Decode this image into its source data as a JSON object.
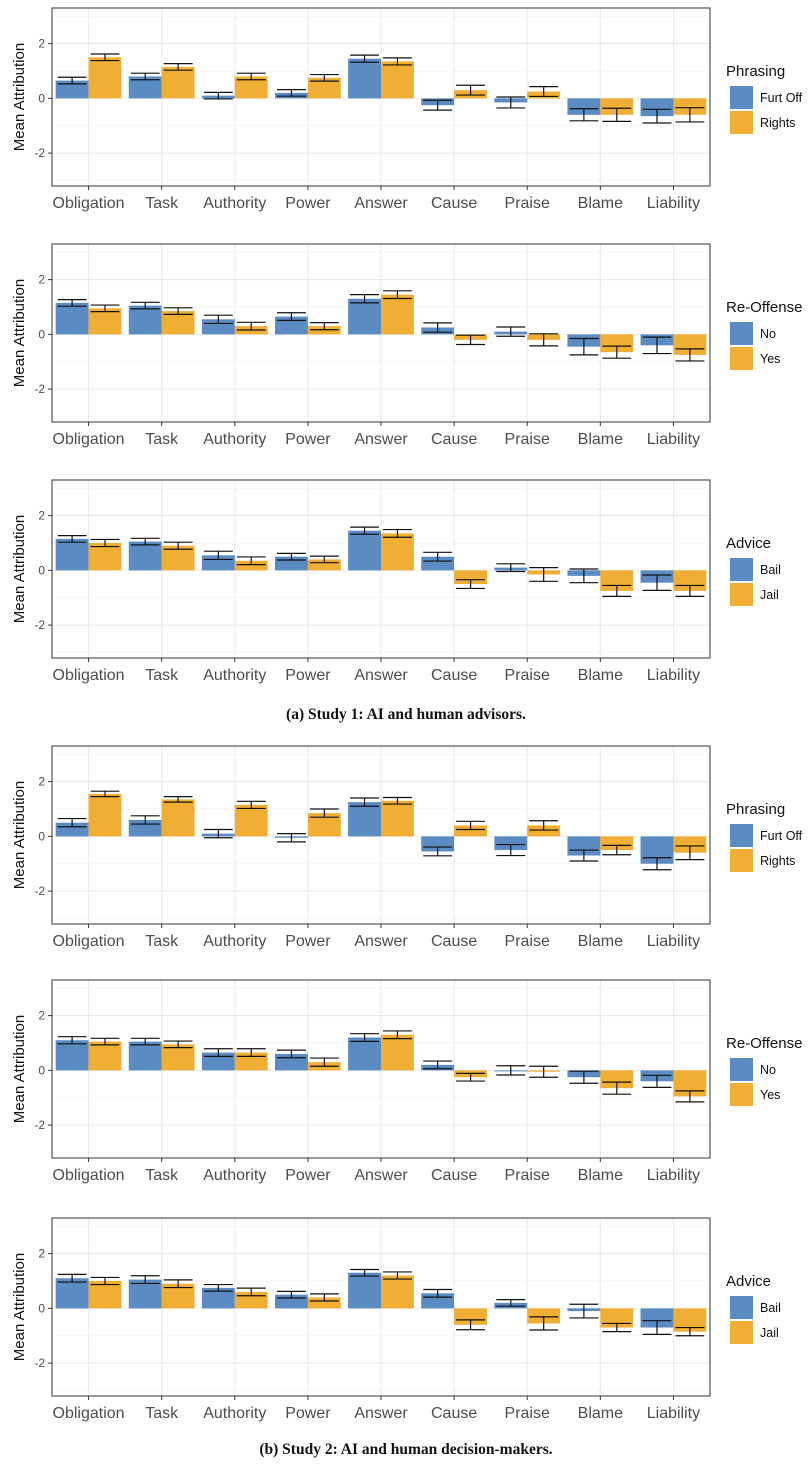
{
  "colors": {
    "blue": "#5b8bc3",
    "orange": "#f0ae35",
    "grid": "#ebebeb",
    "frame": "#333333",
    "text": "#4d4d4d"
  },
  "captions": {
    "study1": "(a) Study 1: AI and human advisors.",
    "study2": "(b) Study 2: AI and human decision-makers."
  },
  "chart_data": [
    {
      "type": "bar",
      "ylabel": "Mean Attribution",
      "ylim": [
        -3.2,
        3.3
      ],
      "yticks": [
        -2,
        0,
        2
      ],
      "categories": [
        "Obligation",
        "Task",
        "Authority",
        "Power",
        "Answer",
        "Cause",
        "Praise",
        "Blame",
        "Liability"
      ],
      "legend_title": "Phrasing",
      "legend_position": "right",
      "series": [
        {
          "name": "Furt Off",
          "color": "#5b8bc3",
          "values": [
            0.65,
            0.8,
            0.1,
            0.2,
            1.45,
            -0.25,
            -0.15,
            -0.6,
            -0.65
          ],
          "errors": [
            0.12,
            0.12,
            0.12,
            0.12,
            0.13,
            0.18,
            0.2,
            0.22,
            0.25
          ]
        },
        {
          "name": "Rights",
          "color": "#f0ae35",
          "values": [
            1.5,
            1.15,
            0.8,
            0.75,
            1.35,
            0.3,
            0.25,
            -0.6,
            -0.6
          ],
          "errors": [
            0.12,
            0.12,
            0.12,
            0.12,
            0.13,
            0.18,
            0.18,
            0.24,
            0.26
          ]
        }
      ]
    },
    {
      "type": "bar",
      "ylabel": "Mean Attribution",
      "ylim": [
        -3.2,
        3.3
      ],
      "yticks": [
        -2,
        0,
        2
      ],
      "categories": [
        "Obligation",
        "Task",
        "Authority",
        "Power",
        "Answer",
        "Cause",
        "Praise",
        "Blame",
        "Liability"
      ],
      "legend_title": "Re-Offense",
      "legend_position": "right",
      "series": [
        {
          "name": "No",
          "color": "#5b8bc3",
          "values": [
            1.15,
            1.05,
            0.55,
            0.65,
            1.3,
            0.25,
            0.1,
            -0.45,
            -0.4
          ],
          "errors": [
            0.12,
            0.12,
            0.15,
            0.14,
            0.15,
            0.17,
            0.17,
            0.3,
            0.3
          ]
        },
        {
          "name": "Yes",
          "color": "#f0ae35",
          "values": [
            0.95,
            0.85,
            0.3,
            0.3,
            1.45,
            -0.2,
            -0.2,
            -0.65,
            -0.75
          ],
          "errors": [
            0.12,
            0.12,
            0.14,
            0.13,
            0.14,
            0.17,
            0.22,
            0.22,
            0.22
          ]
        }
      ]
    },
    {
      "type": "bar",
      "ylabel": "Mean Attribution",
      "ylim": [
        -3.2,
        3.3
      ],
      "yticks": [
        -2,
        0,
        2
      ],
      "categories": [
        "Obligation",
        "Task",
        "Authority",
        "Power",
        "Answer",
        "Cause",
        "Praise",
        "Blame",
        "Liability"
      ],
      "legend_title": "Advice",
      "legend_position": "right",
      "series": [
        {
          "name": "Bail",
          "color": "#5b8bc3",
          "values": [
            1.15,
            1.05,
            0.55,
            0.5,
            1.45,
            0.5,
            0.1,
            -0.2,
            -0.45
          ],
          "errors": [
            0.12,
            0.12,
            0.15,
            0.12,
            0.13,
            0.16,
            0.14,
            0.25,
            0.28
          ]
        },
        {
          "name": "Jail",
          "color": "#f0ae35",
          "values": [
            1.0,
            0.9,
            0.35,
            0.4,
            1.35,
            -0.5,
            -0.15,
            -0.75,
            -0.75
          ],
          "errors": [
            0.13,
            0.13,
            0.14,
            0.12,
            0.14,
            0.16,
            0.25,
            0.2,
            0.2
          ]
        }
      ]
    },
    {
      "type": "bar",
      "ylabel": "Mean Attribution",
      "ylim": [
        -3.2,
        3.3
      ],
      "yticks": [
        -2,
        0,
        2
      ],
      "categories": [
        "Obligation",
        "Task",
        "Authority",
        "Power",
        "Answer",
        "Cause",
        "Praise",
        "Blame",
        "Liability"
      ],
      "legend_title": "Phrasing",
      "legend_position": "right",
      "series": [
        {
          "name": "Furt Off",
          "color": "#5b8bc3",
          "values": [
            0.5,
            0.6,
            0.1,
            -0.05,
            1.25,
            -0.55,
            -0.5,
            -0.7,
            -1.0
          ],
          "errors": [
            0.15,
            0.15,
            0.15,
            0.15,
            0.15,
            0.16,
            0.2,
            0.2,
            0.22
          ]
        },
        {
          "name": "Rights",
          "color": "#f0ae35",
          "values": [
            1.55,
            1.35,
            1.15,
            0.85,
            1.3,
            0.4,
            0.4,
            -0.5,
            -0.6
          ],
          "errors": [
            0.1,
            0.1,
            0.13,
            0.15,
            0.12,
            0.15,
            0.17,
            0.17,
            0.25
          ]
        }
      ]
    },
    {
      "type": "bar",
      "ylabel": "Mean Attribution",
      "ylim": [
        -3.2,
        3.3
      ],
      "yticks": [
        -2,
        0,
        2
      ],
      "categories": [
        "Obligation",
        "Task",
        "Authority",
        "Power",
        "Answer",
        "Cause",
        "Praise",
        "Blame",
        "Liability"
      ],
      "legend_title": "Re-Offense",
      "legend_position": "right",
      "series": [
        {
          "name": "No",
          "color": "#5b8bc3",
          "values": [
            1.1,
            1.05,
            0.65,
            0.6,
            1.2,
            0.2,
            0.0,
            -0.25,
            -0.4
          ],
          "errors": [
            0.13,
            0.12,
            0.14,
            0.14,
            0.14,
            0.14,
            0.17,
            0.22,
            0.22
          ]
        },
        {
          "name": "Yes",
          "color": "#f0ae35",
          "values": [
            1.05,
            0.95,
            0.65,
            0.3,
            1.3,
            -0.25,
            -0.05,
            -0.65,
            -0.95
          ],
          "errors": [
            0.12,
            0.12,
            0.14,
            0.15,
            0.14,
            0.14,
            0.2,
            0.22,
            0.2
          ]
        }
      ]
    },
    {
      "type": "bar",
      "ylabel": "Mean Attribution",
      "ylim": [
        -3.2,
        3.3
      ],
      "yticks": [
        -2,
        0,
        2
      ],
      "categories": [
        "Obligation",
        "Task",
        "Authority",
        "Power",
        "Answer",
        "Cause",
        "Praise",
        "Blame",
        "Liability"
      ],
      "legend_title": "Advice",
      "legend_position": "right",
      "series": [
        {
          "name": "Bail",
          "color": "#5b8bc3",
          "values": [
            1.1,
            1.05,
            0.75,
            0.5,
            1.3,
            0.55,
            0.2,
            -0.1,
            -0.7
          ],
          "errors": [
            0.14,
            0.14,
            0.12,
            0.12,
            0.12,
            0.14,
            0.12,
            0.25,
            0.25
          ]
        },
        {
          "name": "Jail",
          "color": "#f0ae35",
          "values": [
            1.0,
            0.9,
            0.6,
            0.4,
            1.2,
            -0.6,
            -0.55,
            -0.7,
            -0.85
          ],
          "errors": [
            0.13,
            0.14,
            0.14,
            0.13,
            0.13,
            0.18,
            0.24,
            0.15,
            0.15
          ]
        }
      ]
    }
  ]
}
